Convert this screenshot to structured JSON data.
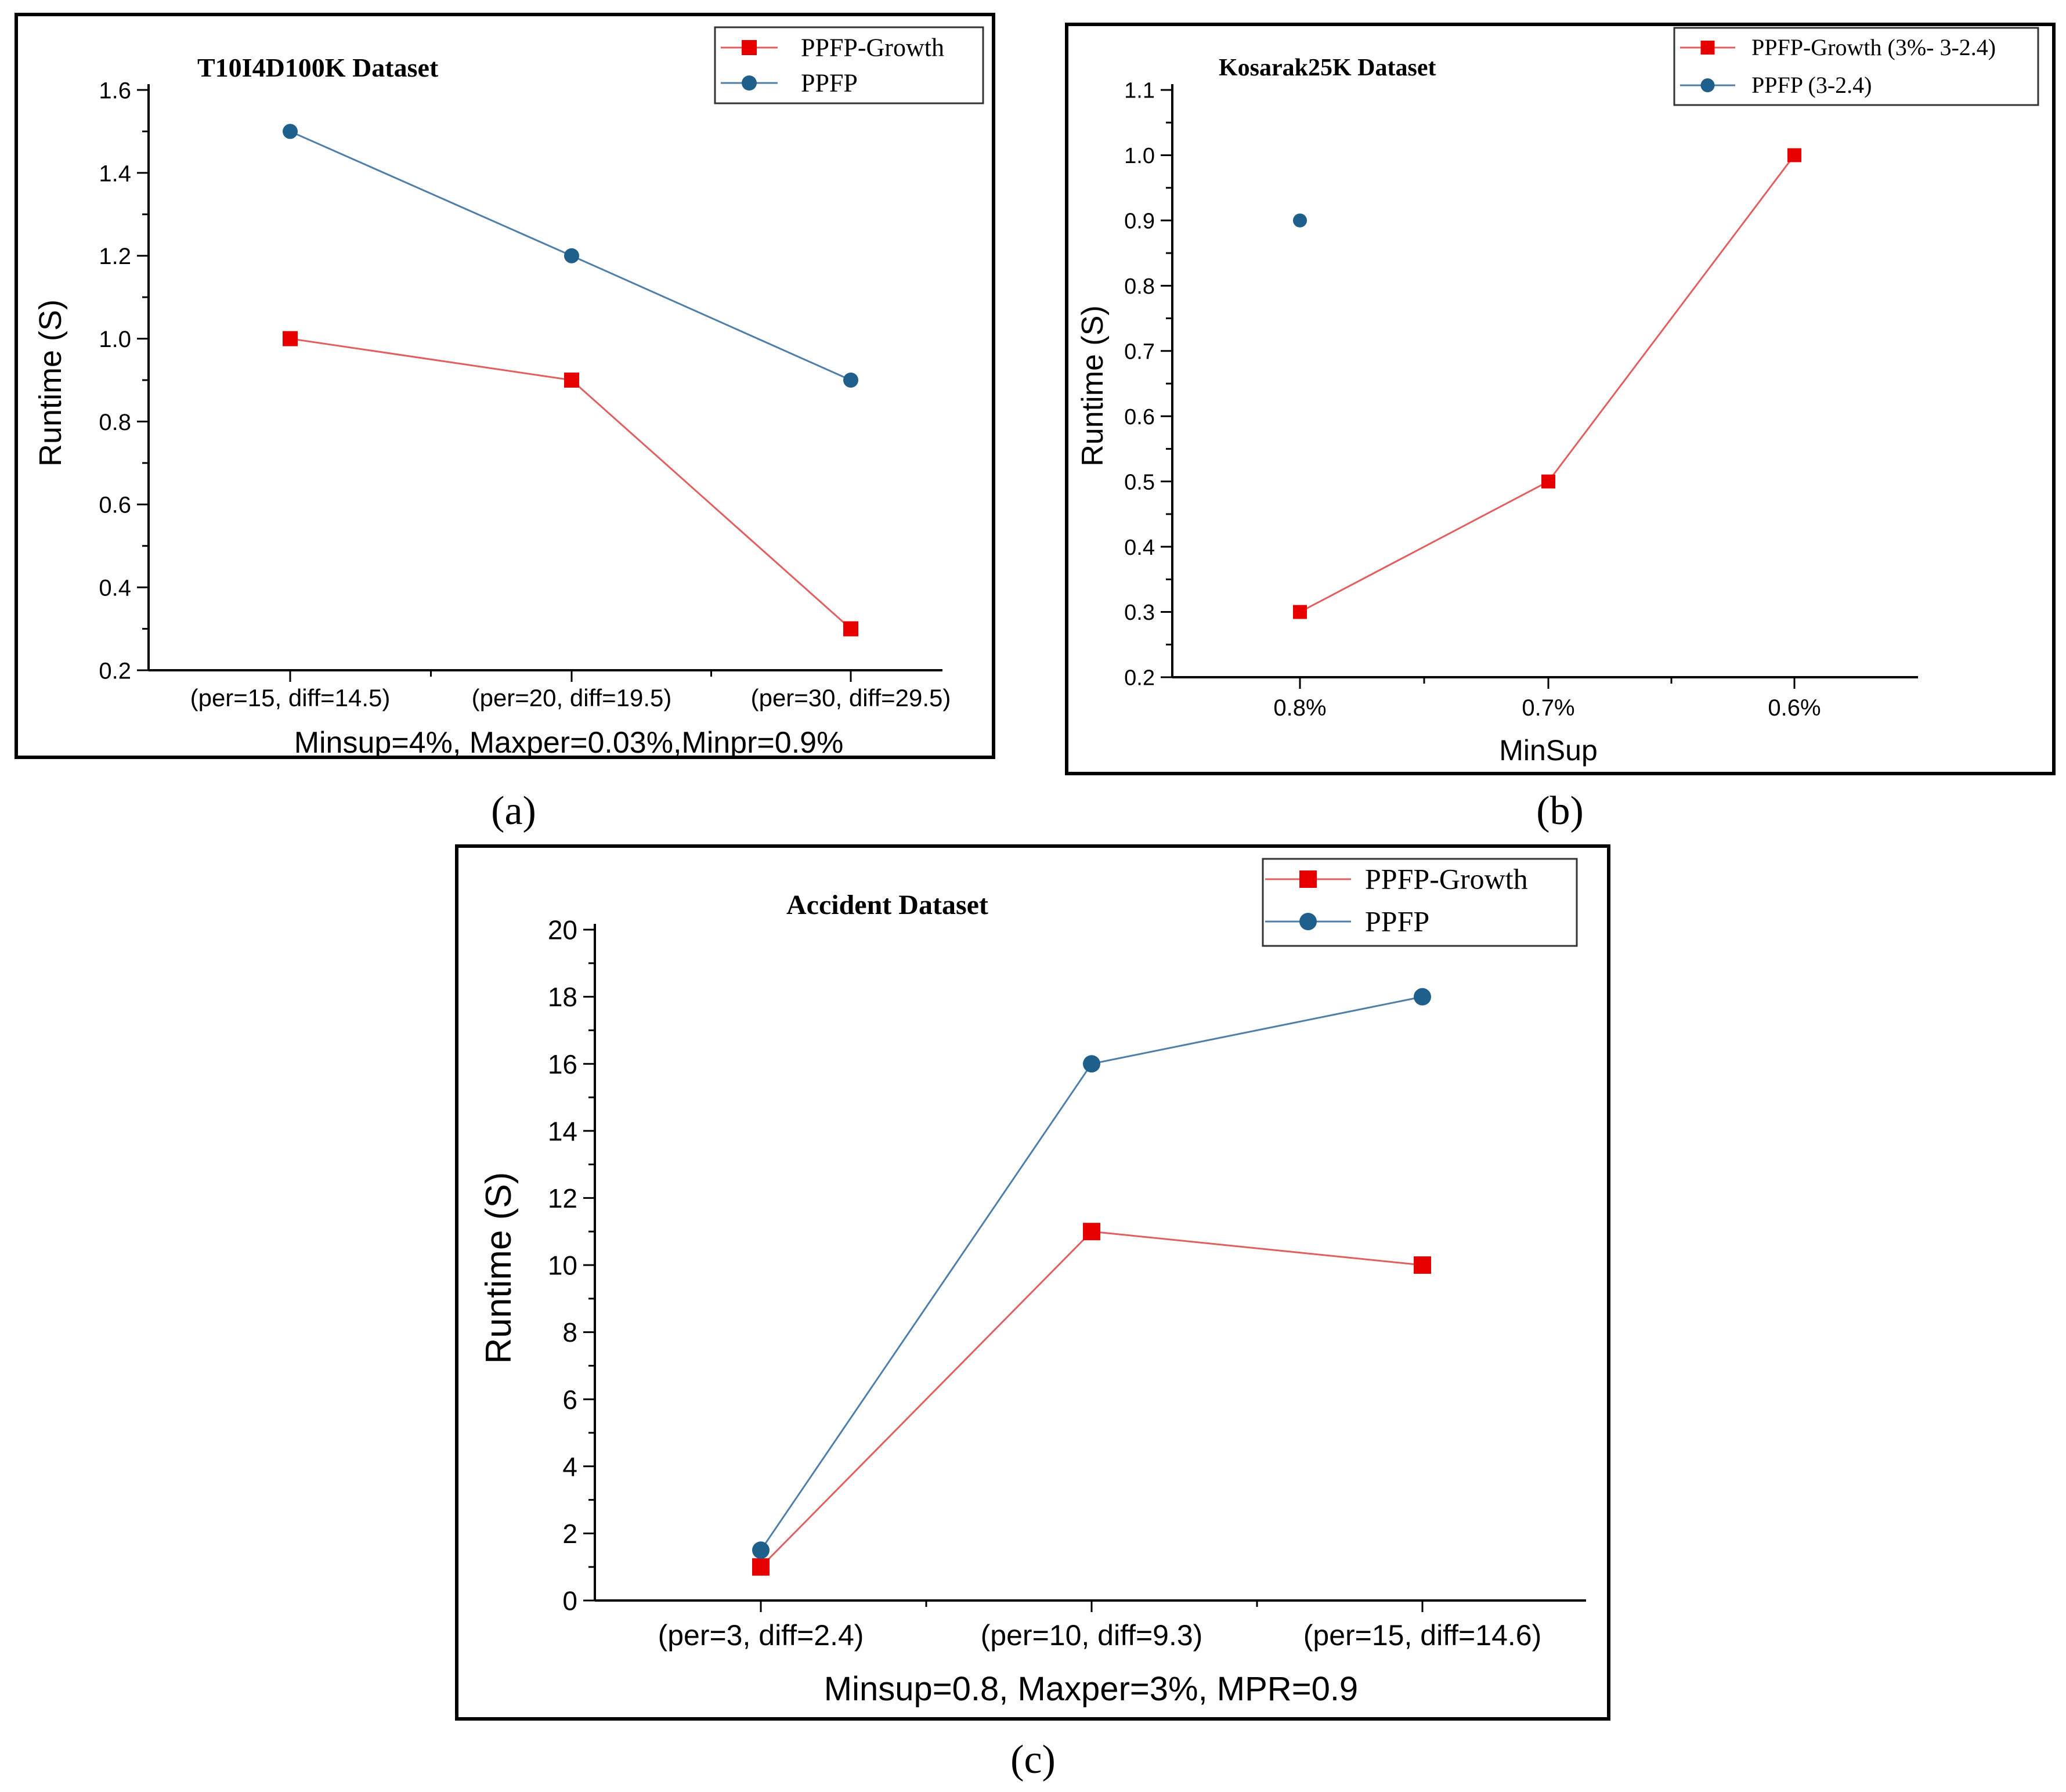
{
  "colors": {
    "growth": "#e60000",
    "ppfp": "#1f5f8b",
    "growth_line": "#e06060",
    "ppfp_line": "#4f7fa8",
    "axis": "#000000"
  },
  "chart_data": [
    {
      "type": "line",
      "panel_label": "(a)",
      "title": "T10I4D100K Dataset",
      "xlabel": "Minsup=4%, Maxper=0.03%,Minpr=0.9%",
      "ylabel": "Runtime (S)",
      "categories": [
        "(per=15, diff=14.5)",
        "(per=20, diff=19.5)",
        "(per=30, diff=29.5)"
      ],
      "ylim": [
        0.2,
        1.6
      ],
      "yticks": [
        "0.2",
        "0.4",
        "0.6",
        "0.8",
        "1.0",
        "1.2",
        "1.4",
        "1.6"
      ],
      "legend_position": "top-right",
      "series": [
        {
          "name": "PPFP-Growth",
          "marker": "square",
          "values": [
            1.0,
            0.9,
            0.3
          ]
        },
        {
          "name": "PPFP",
          "marker": "circle",
          "values": [
            1.5,
            1.2,
            0.9
          ]
        }
      ]
    },
    {
      "type": "line",
      "panel_label": "(b)",
      "title": "Kosarak25K Dataset",
      "xlabel": "MinSup",
      "ylabel": "Runtime (S)",
      "categories": [
        "0.8%",
        "0.7%",
        "0.6%"
      ],
      "ylim": [
        0.2,
        1.1
      ],
      "yticks": [
        "0.2",
        "0.3",
        "0.4",
        "0.5",
        "0.6",
        "0.7",
        "0.8",
        "0.9",
        "1.0",
        "1.1"
      ],
      "legend_position": "top-right",
      "series": [
        {
          "name": "PPFP-Growth (3%- 3-2.4)",
          "marker": "square",
          "values": [
            0.3,
            0.5,
            1.0
          ]
        },
        {
          "name": "PPFP (3-2.4)",
          "marker": "circle",
          "values": [
            0.9,
            null,
            null
          ]
        }
      ]
    },
    {
      "type": "line",
      "panel_label": "(c)",
      "title": "Accident Dataset",
      "xlabel": "Minsup=0.8, Maxper=3%,  MPR=0.9",
      "ylabel": "Runtime (S)",
      "categories": [
        "(per=3, diff=2.4)",
        "(per=10, diff=9.3)",
        "(per=15, diff=14.6)"
      ],
      "ylim": [
        0,
        20
      ],
      "yticks": [
        "0",
        "2",
        "4",
        "6",
        "8",
        "10",
        "12",
        "14",
        "16",
        "18",
        "20"
      ],
      "legend_position": "top-right",
      "series": [
        {
          "name": "PPFP-Growth",
          "marker": "square",
          "values": [
            1.0,
            11.0,
            10.0
          ]
        },
        {
          "name": "PPFP",
          "marker": "circle",
          "values": [
            1.5,
            16.0,
            18.0
          ]
        }
      ]
    }
  ]
}
